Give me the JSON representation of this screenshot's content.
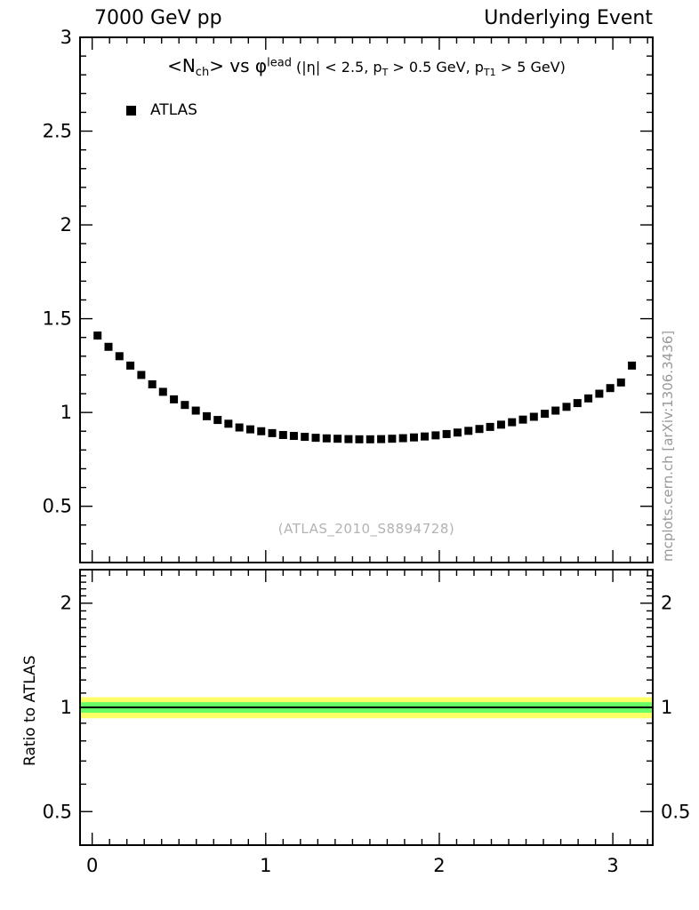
{
  "header": {
    "left": "7000 GeV pp",
    "right": "Underlying Event"
  },
  "plot": {
    "title": {
      "p1": "<N",
      "p1sub": "ch",
      "p2": "> vs ",
      "p3": "φ",
      "p3sup": "lead",
      "p4": " (|η| < 2.5, p",
      "p4sub": "T",
      "p5": " > 0.5 GeV, p",
      "p5sub": "T1",
      "p6": " > 5 GeV)"
    },
    "legend": {
      "label": "ATLAS",
      "marker": "filled-square",
      "color": "#000000"
    },
    "watermark": "(ATLAS_2010_S8894728)",
    "side_caption": "mcplots.cern.ch [arXiv:1306.3436]",
    "ratio_ylabel": "Ratio to ATLAS"
  },
  "colors": {
    "band_outer": "#ffff66",
    "band_inner": "#66ff66",
    "marker": "#000000",
    "watermark": "#b3b3b3",
    "side_caption": "#999999"
  },
  "chart_data": [
    {
      "type": "scatter",
      "marker": "filled-square",
      "title": "<N_ch> vs phi^lead (|eta| < 2.5, pT > 0.5 GeV, pT1 > 5 GeV)",
      "xlabel": "",
      "ylabel": "",
      "xlim": [
        -0.07,
        3.23
      ],
      "ylim": [
        0.2,
        3.0
      ],
      "yscale": "linear",
      "xticks": [
        0,
        1,
        2,
        3
      ],
      "yticks": [
        0.5,
        1,
        1.5,
        2,
        2.5,
        3
      ],
      "minor": {
        "x_step": 0.1,
        "y_step": 0.1
      },
      "grid": false,
      "legend_position": "top-left-inside",
      "series": [
        {
          "name": "ATLAS",
          "color": "#000000",
          "x": [
            0.031,
            0.094,
            0.157,
            0.22,
            0.283,
            0.346,
            0.408,
            0.471,
            0.534,
            0.597,
            0.66,
            0.723,
            0.785,
            0.848,
            0.911,
            0.974,
            1.037,
            1.1,
            1.162,
            1.225,
            1.288,
            1.351,
            1.414,
            1.477,
            1.539,
            1.602,
            1.665,
            1.728,
            1.791,
            1.854,
            1.916,
            1.979,
            2.042,
            2.105,
            2.168,
            2.231,
            2.293,
            2.356,
            2.419,
            2.482,
            2.545,
            2.608,
            2.67,
            2.733,
            2.796,
            2.859,
            2.922,
            2.985,
            3.047,
            3.11
          ],
          "y": [
            1.41,
            1.35,
            1.3,
            1.25,
            1.2,
            1.15,
            1.11,
            1.07,
            1.04,
            1.01,
            0.98,
            0.96,
            0.94,
            0.92,
            0.91,
            0.9,
            0.89,
            0.88,
            0.875,
            0.87,
            0.865,
            0.862,
            0.86,
            0.858,
            0.857,
            0.857,
            0.858,
            0.86,
            0.863,
            0.867,
            0.872,
            0.878,
            0.885,
            0.893,
            0.902,
            0.912,
            0.923,
            0.935,
            0.948,
            0.962,
            0.977,
            0.993,
            1.01,
            1.03,
            1.05,
            1.075,
            1.1,
            1.13,
            1.16,
            1.25
          ]
        }
      ]
    },
    {
      "type": "band",
      "title": "Ratio to ATLAS",
      "xlabel": "",
      "ylabel": "Ratio to ATLAS",
      "xlim": [
        -0.07,
        3.23
      ],
      "ylim": [
        0.4,
        2.5
      ],
      "yscale": "log",
      "xticks": [
        0,
        1,
        2,
        3
      ],
      "yticks": [
        0.5,
        1,
        2
      ],
      "minor": {
        "x_step": 0.1,
        "y_list": [
          0.4,
          0.6,
          0.7,
          0.8,
          0.9,
          1.1,
          1.2,
          1.3,
          1.4,
          1.5,
          1.6,
          1.7,
          1.8,
          1.9,
          2.1,
          2.2,
          2.3,
          2.4
        ]
      },
      "grid": false,
      "bands": [
        {
          "name": "outer-uncertainty",
          "color": "#ffff66",
          "y1": 0.93,
          "y2": 1.07
        },
        {
          "name": "inner-uncertainty",
          "color": "#66ff66",
          "y1": 0.965,
          "y2": 1.035
        }
      ],
      "centerline": {
        "y": 1,
        "color": "#000000"
      }
    }
  ]
}
